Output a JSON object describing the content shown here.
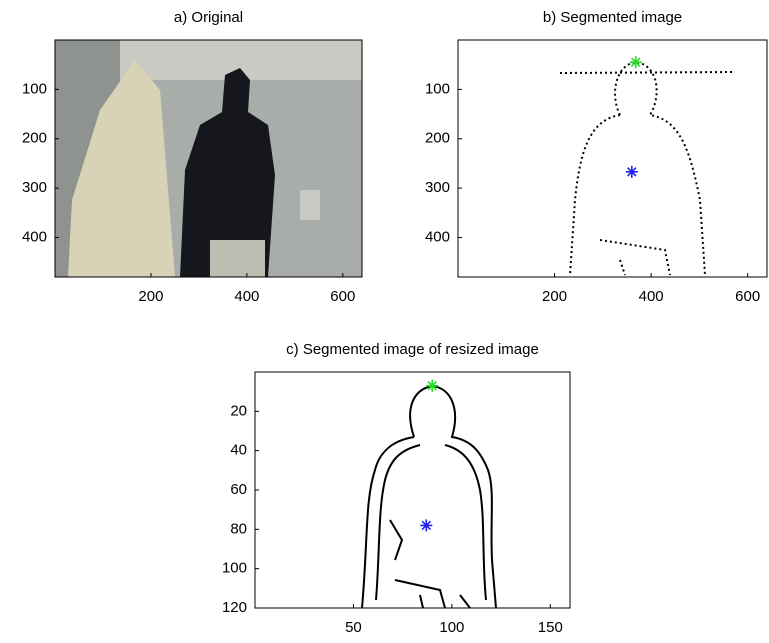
{
  "chart_data": [
    {
      "type": "image",
      "title": "a) Original",
      "xlim": [
        0,
        640
      ],
      "ylim": [
        0,
        480
      ],
      "y_reversed": true,
      "xticks": [
        200,
        400,
        600
      ],
      "yticks": [
        100,
        200,
        300,
        400
      ]
    },
    {
      "type": "image",
      "title": "b) Segmented image",
      "xlim": [
        0,
        640
      ],
      "ylim": [
        0,
        480
      ],
      "y_reversed": true,
      "xticks": [
        200,
        400,
        600
      ],
      "yticks": [
        100,
        200,
        300,
        400
      ],
      "markers": {
        "x": [
          368,
          360
        ],
        "y": [
          45,
          267
        ],
        "colors": [
          "#22dd22",
          "#2222ee"
        ]
      }
    },
    {
      "type": "image",
      "title": "c) Segmented image of resized image",
      "xlim": [
        0,
        160
      ],
      "ylim": [
        0,
        120
      ],
      "y_reversed": true,
      "xticks": [
        50,
        100,
        150
      ],
      "yticks": [
        20,
        40,
        60,
        80,
        100,
        120
      ],
      "markers": {
        "x": [
          90,
          87
        ],
        "y": [
          7,
          78
        ],
        "colors": [
          "#22dd22",
          "#2222ee"
        ]
      }
    }
  ]
}
